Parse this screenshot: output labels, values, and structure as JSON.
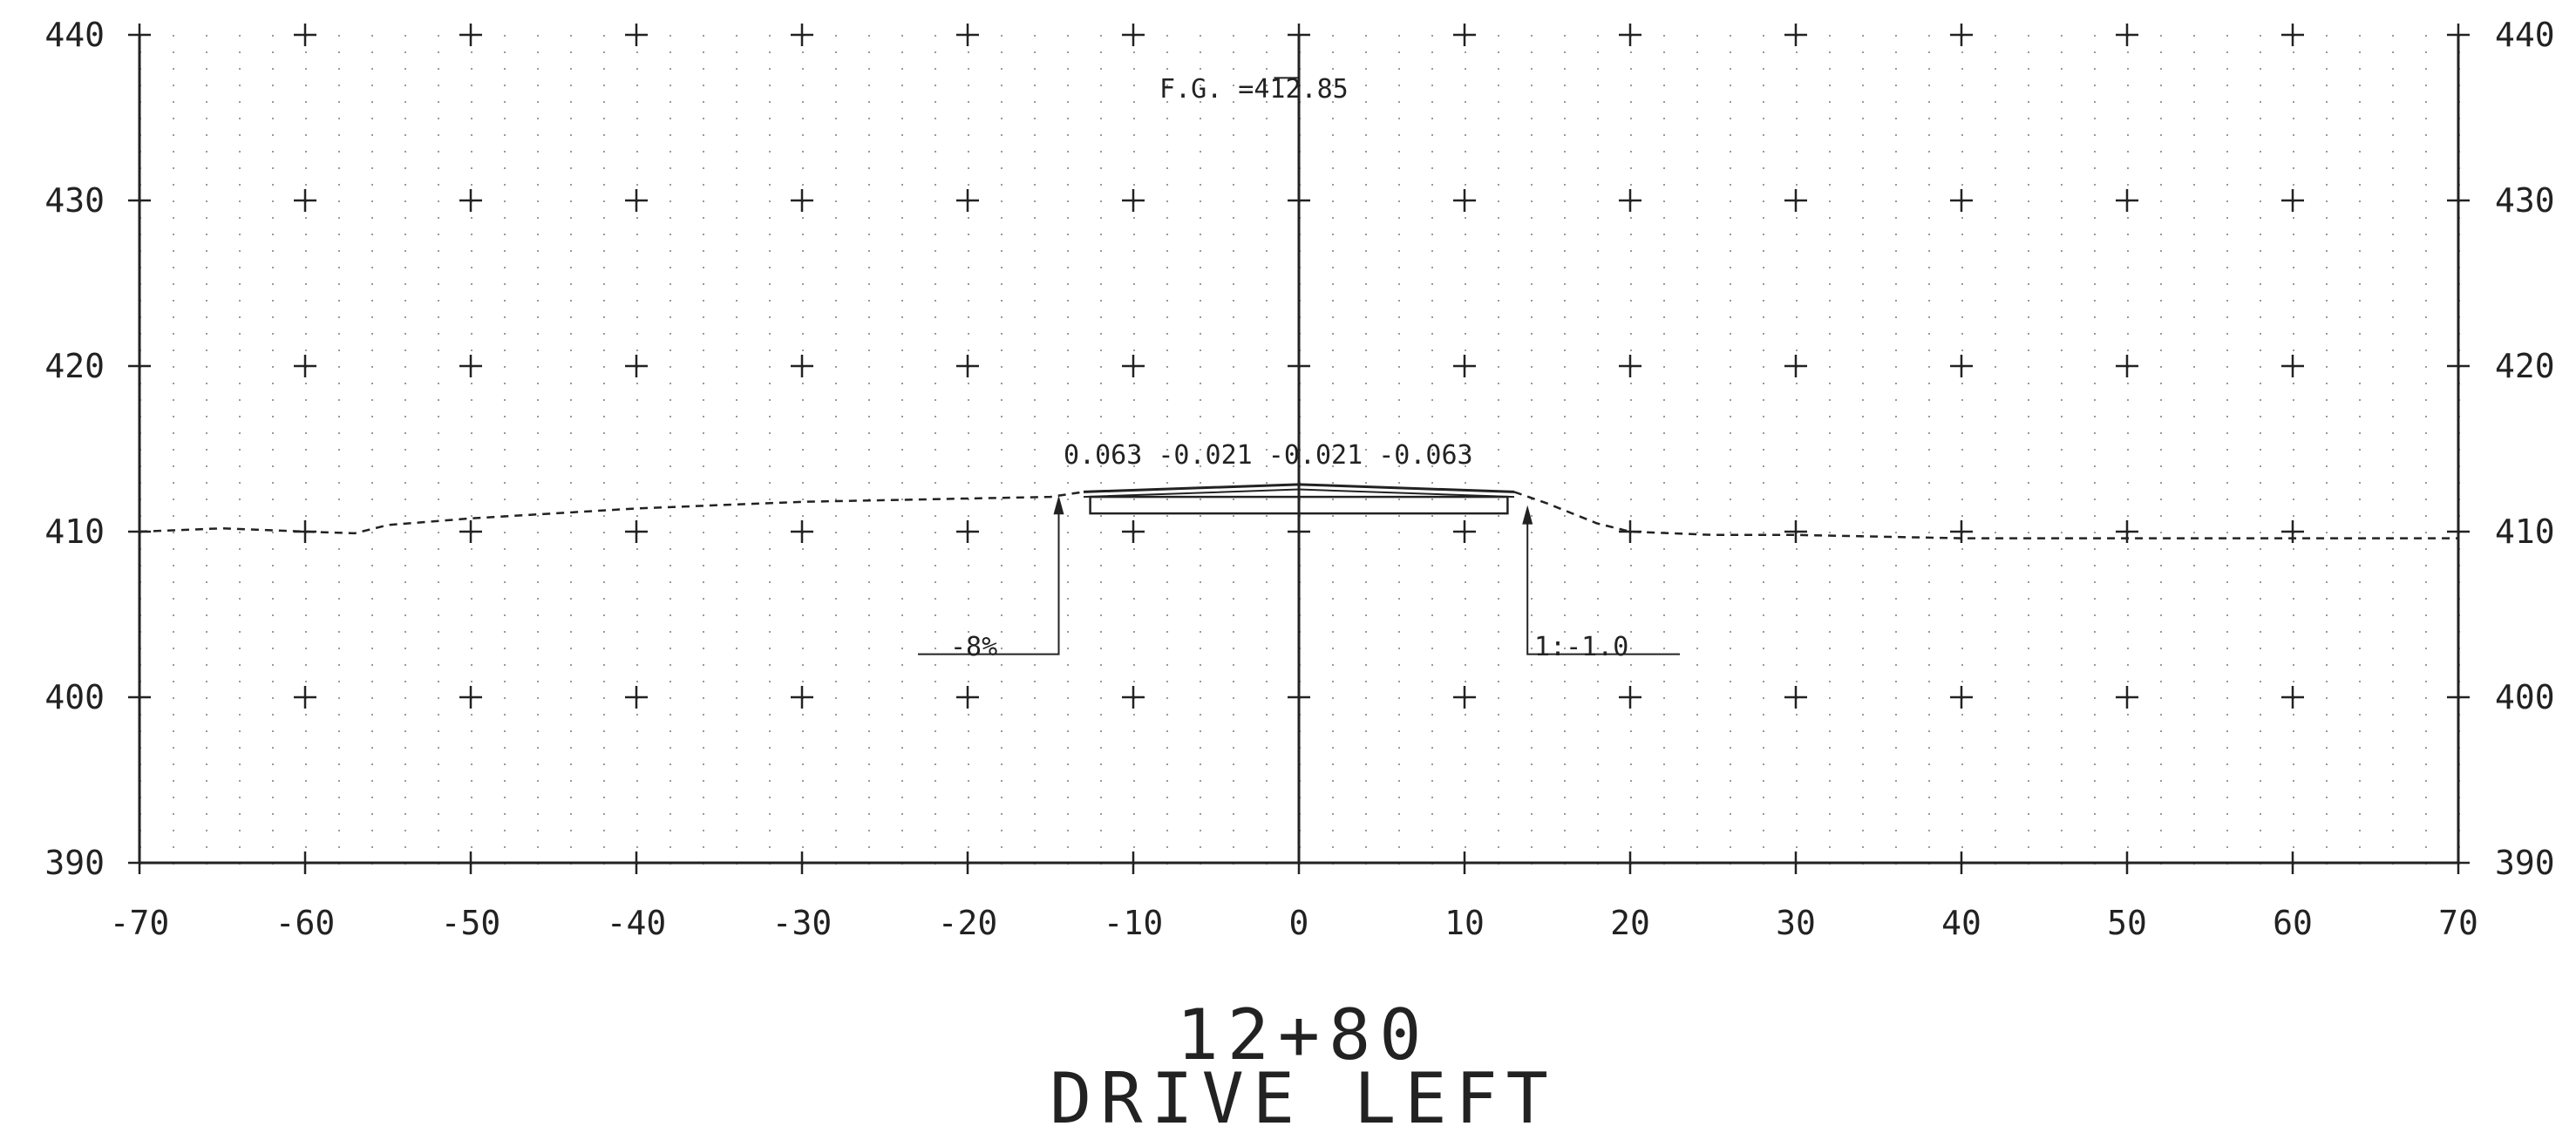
{
  "drawing": {
    "station": "12+80",
    "label": "DRIVE LEFT",
    "annotations": {
      "finished_grade": "F.G. =412.85",
      "slopes": "0.063 -0.021 -0.021 -0.063",
      "left_slope": "-8%",
      "right_slope": "1:-1.0"
    },
    "colors": {
      "ink": "#222222",
      "grid": "#9a9a9a",
      "background": "#ffffff"
    }
  },
  "chart_data": {
    "type": "line",
    "title": "",
    "xlabel": "",
    "ylabel": "",
    "xlim": [
      -70,
      70
    ],
    "ylim": [
      390,
      440
    ],
    "grid": true,
    "x_ticks": [
      "-70",
      "-60",
      "-50",
      "-40",
      "-30",
      "-20",
      "-10",
      "0",
      "10",
      "20",
      "30",
      "40",
      "50",
      "60",
      "70"
    ],
    "y_ticks": [
      "390",
      "400",
      "410",
      "420",
      "430",
      "440"
    ],
    "series": [
      {
        "x": [
          -70,
          -65,
          -60,
          -57,
          -55,
          -50,
          -45,
          -40,
          -35,
          -30,
          -25,
          -20,
          -15,
          -13
        ],
        "y": [
          410.0,
          410.2,
          410.0,
          409.9,
          410.4,
          410.8,
          411.1,
          411.4,
          411.6,
          411.8,
          411.9,
          412.0,
          412.1,
          412.4
        ]
      },
      {
        "x": [
          13,
          15,
          18,
          20,
          25,
          30,
          35,
          40,
          45,
          50,
          55,
          60,
          65,
          70
        ],
        "y": [
          412.4,
          411.7,
          410.5,
          410.0,
          409.8,
          409.8,
          409.7,
          409.6,
          409.6,
          409.6,
          409.6,
          409.6,
          409.6,
          409.6
        ]
      }
    ]
  }
}
